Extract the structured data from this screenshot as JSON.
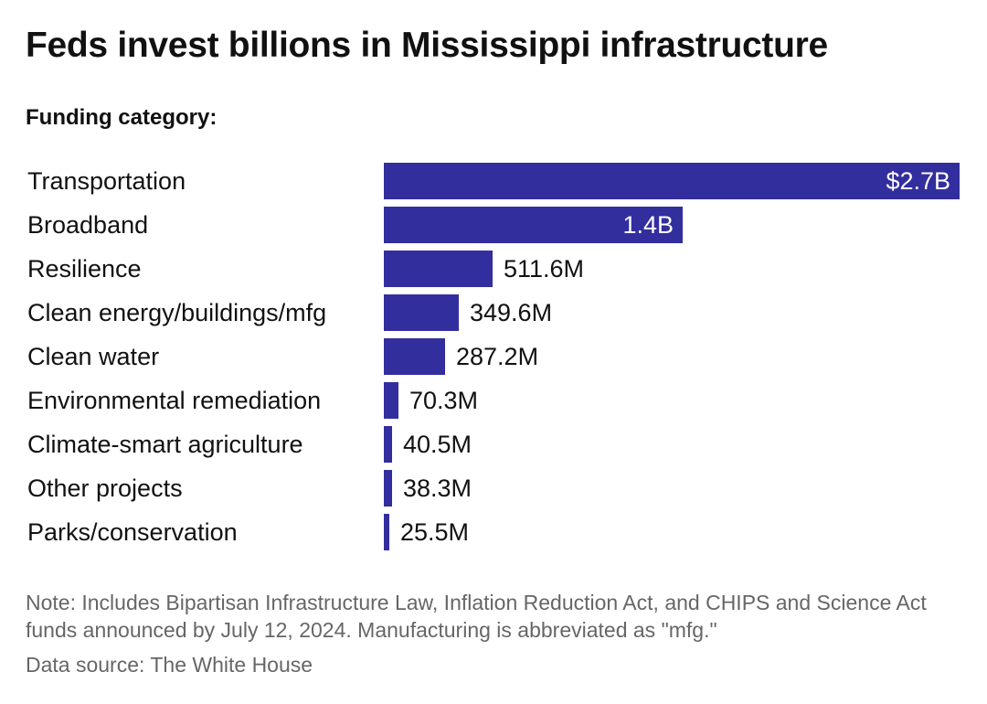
{
  "title": "Feds invest billions in Mississippi infrastructure",
  "subtitle": "Funding category:",
  "note": "Note: Includes Bipartisan Infrastructure Law, Inflation Reduction Act, and CHIPS and Science Act funds announced by July 12, 2024. Manufacturing is abbreviated as \"mfg.\"",
  "source": "Data source: The White House",
  "colors": {
    "bar": "#332e9e"
  },
  "chart_data": {
    "type": "bar",
    "orientation": "horizontal",
    "unit": "USD",
    "categories": [
      "Transportation",
      "Broadband",
      "Resilience",
      "Clean energy/buildings/mfg",
      "Clean water",
      "Environmental remediation",
      "Climate-smart agriculture",
      "Other projects",
      "Parks/conservation"
    ],
    "values": [
      2700000000,
      1400000000,
      511600000,
      349600000,
      287200000,
      70300000,
      40500000,
      38300000,
      25500000
    ],
    "value_labels": [
      "$2.7B",
      "1.4B",
      "511.6M",
      "349.6M",
      "287.2M",
      "70.3M",
      "40.5M",
      "38.3M",
      "25.5M"
    ],
    "title": "Feds invest billions in Mississippi infrastructure",
    "xlabel": "",
    "ylabel": "",
    "xlim": [
      0,
      2700000000
    ],
    "grid": false,
    "legend": "none"
  }
}
